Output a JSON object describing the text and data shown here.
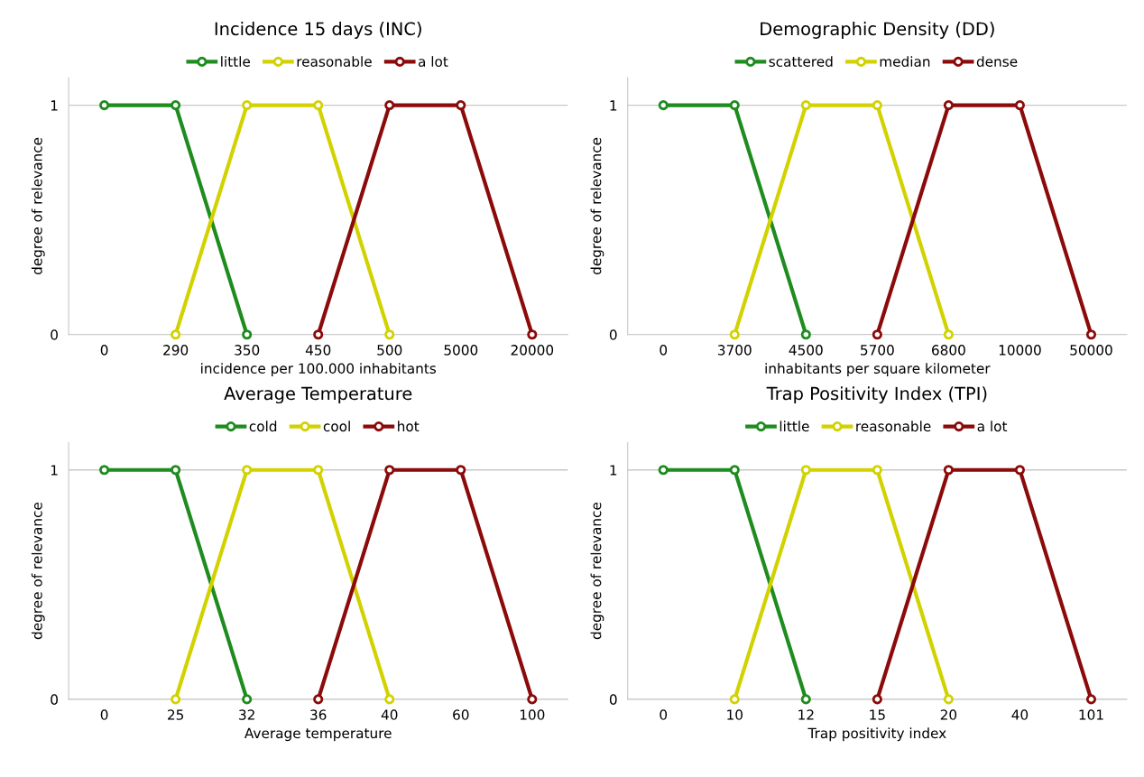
{
  "chart_data": [
    {
      "type": "line",
      "title": "Incidence 15 days (INC)",
      "xlabel": "incidence per 100.000 inhabitants",
      "ylabel": "degree of relevance",
      "categories": [
        "0",
        "290",
        "350",
        "450",
        "500",
        "5000",
        "20000"
      ],
      "ylim": [
        0,
        1.12
      ],
      "yticks": [
        0,
        1
      ],
      "grid": "y",
      "legend": "top",
      "marker": "circle",
      "line_style": "solid",
      "series": [
        {
          "name": "little",
          "color": "#1e8c1e",
          "values": [
            1,
            1,
            0,
            null,
            null,
            null,
            null
          ]
        },
        {
          "name": "reasonable",
          "color": "#d2d200",
          "values": [
            null,
            0,
            1,
            1,
            0,
            null,
            null
          ]
        },
        {
          "name": "a lot",
          "color": "#8b0a0a",
          "values": [
            null,
            null,
            null,
            0,
            1,
            1,
            0
          ]
        }
      ]
    },
    {
      "type": "line",
      "title": "Demographic Density (DD)",
      "xlabel": "inhabitants per square kilometer",
      "ylabel": "degree of relevance",
      "categories": [
        "0",
        "3700",
        "4500",
        "5700",
        "6800",
        "10000",
        "50000"
      ],
      "ylim": [
        0,
        1.12
      ],
      "yticks": [
        0,
        1
      ],
      "grid": "y",
      "legend": "top",
      "marker": "circle",
      "line_style": "solid",
      "series": [
        {
          "name": "scattered",
          "color": "#1e8c1e",
          "values": [
            1,
            1,
            0,
            null,
            null,
            null,
            null
          ]
        },
        {
          "name": "median",
          "color": "#d2d200",
          "values": [
            null,
            0,
            1,
            1,
            0,
            null,
            null
          ]
        },
        {
          "name": "dense",
          "color": "#8b0a0a",
          "values": [
            null,
            null,
            null,
            0,
            1,
            1,
            0
          ]
        }
      ]
    },
    {
      "type": "line",
      "title": "Average Temperature",
      "xlabel": "Average temperature",
      "ylabel": "degree of relevance",
      "categories": [
        "0",
        "25",
        "32",
        "36",
        "40",
        "60",
        "100"
      ],
      "ylim": [
        0,
        1.12
      ],
      "yticks": [
        0,
        1
      ],
      "grid": "y",
      "legend": "top",
      "marker": "circle",
      "line_style": "solid",
      "series": [
        {
          "name": "cold",
          "color": "#1e8c1e",
          "values": [
            1,
            1,
            0,
            null,
            null,
            null,
            null
          ]
        },
        {
          "name": "cool",
          "color": "#d2d200",
          "values": [
            null,
            0,
            1,
            1,
            0,
            null,
            null
          ]
        },
        {
          "name": "hot",
          "color": "#8b0a0a",
          "values": [
            null,
            null,
            null,
            0,
            1,
            1,
            0
          ]
        }
      ]
    },
    {
      "type": "line",
      "title": "Trap Positivity Index (TPI)",
      "xlabel": "Trap positivity index",
      "ylabel": "degree of relevance",
      "categories": [
        "0",
        "10",
        "12",
        "15",
        "20",
        "40",
        "101"
      ],
      "ylim": [
        0,
        1.12
      ],
      "yticks": [
        0,
        1
      ],
      "grid": "y",
      "legend": "top",
      "marker": "circle",
      "line_style": "solid",
      "series": [
        {
          "name": "little",
          "color": "#1e8c1e",
          "values": [
            1,
            1,
            0,
            null,
            null,
            null,
            null
          ]
        },
        {
          "name": "reasonable",
          "color": "#d2d200",
          "values": [
            null,
            0,
            1,
            1,
            0,
            null,
            null
          ]
        },
        {
          "name": "a lot",
          "color": "#8b0a0a",
          "values": [
            null,
            null,
            null,
            0,
            1,
            1,
            0
          ]
        }
      ]
    }
  ]
}
